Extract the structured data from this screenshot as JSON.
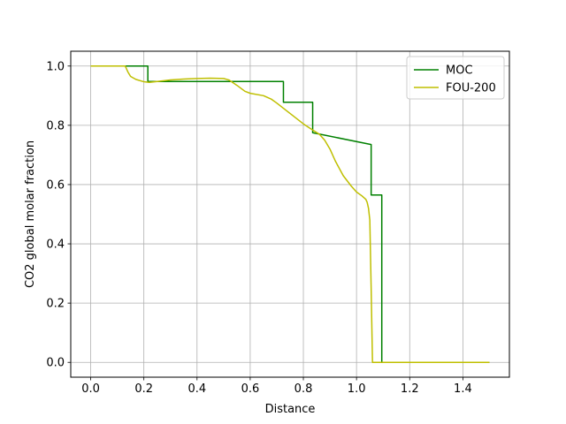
{
  "chart_data": {
    "type": "line",
    "xlabel": "Distance",
    "ylabel": "CO2 global molar fraction",
    "xlim": [
      -0.075,
      1.575
    ],
    "ylim": [
      -0.05,
      1.05
    ],
    "x_ticks": [
      0.0,
      0.2,
      0.4,
      0.6,
      0.8,
      1.0,
      1.2,
      1.4
    ],
    "x_tick_labels": [
      "0.0",
      "0.2",
      "0.4",
      "0.6",
      "0.8",
      "1.0",
      "1.2",
      "1.4"
    ],
    "y_ticks": [
      0.0,
      0.2,
      0.4,
      0.6,
      0.8,
      1.0
    ],
    "y_tick_labels": [
      "0.0",
      "0.2",
      "0.4",
      "0.6",
      "0.8",
      "1.0"
    ],
    "grid": true,
    "legend_position": "upper right",
    "series": [
      {
        "name": "MOC",
        "color": "#008000",
        "x": [
          0.0,
          0.215,
          0.215,
          0.725,
          0.725,
          0.835,
          0.835,
          1.055,
          1.055,
          1.095,
          1.095,
          1.5
        ],
        "y": [
          1.0,
          1.0,
          0.948,
          0.948,
          0.878,
          0.878,
          0.775,
          0.735,
          0.565,
          0.565,
          0.0,
          0.0
        ]
      },
      {
        "name": "FOU-200",
        "color": "#bfbf00",
        "x": [
          0.0,
          0.13,
          0.14,
          0.15,
          0.17,
          0.2,
          0.22,
          0.25,
          0.3,
          0.35,
          0.4,
          0.45,
          0.5,
          0.52,
          0.55,
          0.58,
          0.6,
          0.65,
          0.68,
          0.7,
          0.75,
          0.8,
          0.83,
          0.86,
          0.88,
          0.9,
          0.92,
          0.95,
          0.98,
          1.0,
          1.02,
          1.035,
          1.04,
          1.045,
          1.05,
          1.055,
          1.06,
          1.065,
          1.07,
          1.5
        ],
        "y": [
          1.0,
          1.0,
          0.98,
          0.965,
          0.955,
          0.947,
          0.945,
          0.948,
          0.953,
          0.956,
          0.958,
          0.959,
          0.958,
          0.953,
          0.935,
          0.915,
          0.908,
          0.9,
          0.888,
          0.875,
          0.84,
          0.805,
          0.787,
          0.77,
          0.75,
          0.72,
          0.68,
          0.63,
          0.595,
          0.575,
          0.562,
          0.55,
          0.54,
          0.52,
          0.48,
          0.25,
          0.0,
          0.0,
          0.0,
          0.0
        ]
      }
    ]
  }
}
